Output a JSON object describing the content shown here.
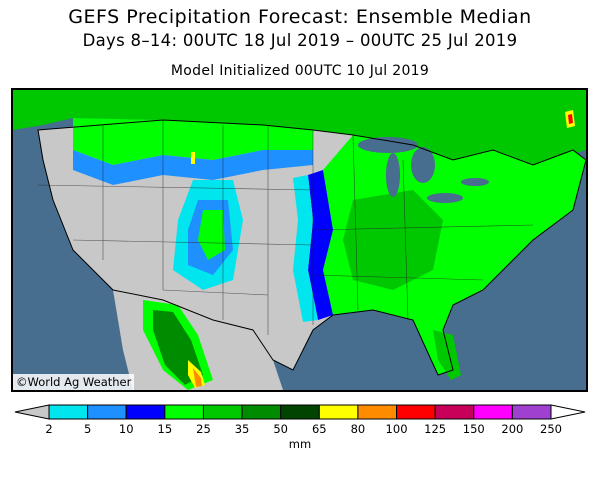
{
  "title": "GEFS Precipitation Forecast: Ensemble Median",
  "subtitle": "Days 8–14: 00UTC 18 Jul 2019 – 00UTC 25 Jul 2019",
  "init_line": "Model Initialized 00UTC 10 Jul 2019",
  "credit": "©World Ag Weather",
  "legend": {
    "unit": "mm",
    "levels": [
      "2",
      "5",
      "10",
      "15",
      "25",
      "35",
      "50",
      "65",
      "80",
      "100",
      "125",
      "150",
      "200",
      "250"
    ],
    "colors": [
      "#c8c8c8",
      "#00e5ee",
      "#1e90ff",
      "#0000ff",
      "#00ff00",
      "#00c800",
      "#008c00",
      "#004400",
      "#ffff00",
      "#ff8c00",
      "#ff0000",
      "#c8005a",
      "#ff00ff",
      "#a040d0",
      "#ffffff"
    ]
  },
  "colors": {
    "ocean": "#476d8f",
    "dry": "#c8c8c8",
    "lakes": "#476d8f"
  }
}
